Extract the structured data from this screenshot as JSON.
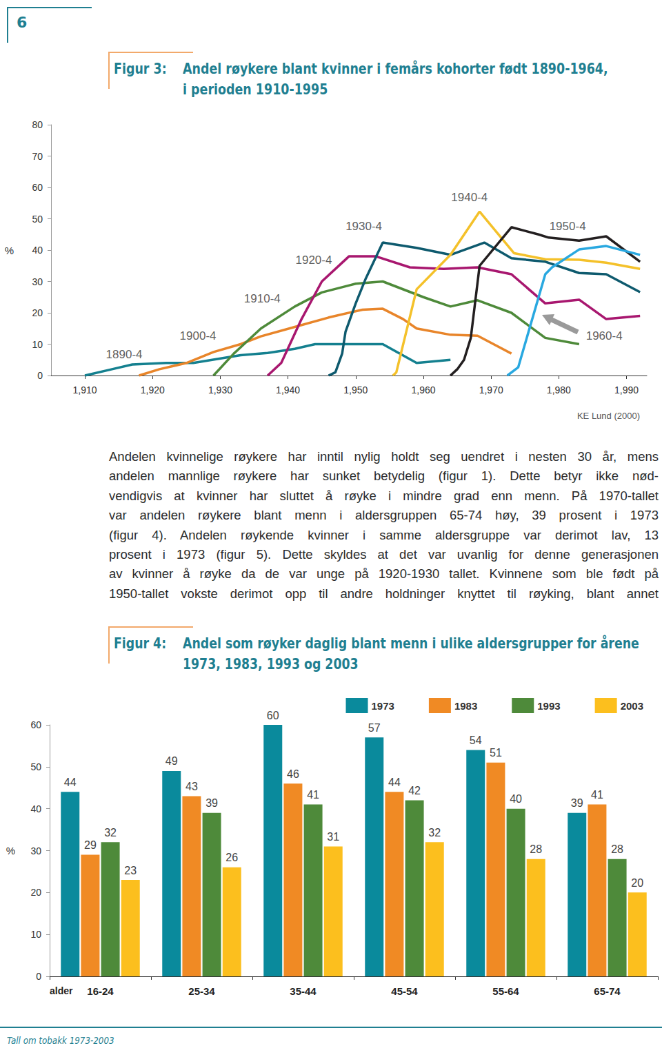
{
  "header": {
    "page_number": "6"
  },
  "chart_data": [
    {
      "type": "line",
      "figure_label": "Figur 3:",
      "title": [
        "Andel røykere blant kvinner i femårs kohorter født 1890-1964,",
        "i perioden 1910-1995"
      ],
      "source": "KE Lund (2000)",
      "y_label": "%",
      "xlim": [
        1905,
        1993
      ],
      "xticks": [
        1910,
        1920,
        1930,
        1940,
        1950,
        1960,
        1970,
        1980,
        1990
      ],
      "ylim": [
        0,
        80
      ],
      "yticks": [
        0,
        10,
        20,
        30,
        40,
        50,
        60,
        70,
        80
      ],
      "grid": false,
      "series": [
        {
          "name": "1890-4",
          "color": "#14808f",
          "x": [
            1910,
            1914,
            1917,
            1922,
            1926,
            1933,
            1937,
            1941,
            1944,
            1954,
            1959,
            1964
          ],
          "values": [
            0,
            2,
            3.5,
            4,
            4,
            6.5,
            7.2,
            8.5,
            10,
            10,
            4,
            5
          ]
        },
        {
          "name": "1900-4",
          "color": "#e8852a",
          "x": [
            1918,
            1921,
            1925,
            1929,
            1933,
            1936,
            1941,
            1946,
            1951,
            1954,
            1957,
            1959,
            1964,
            1968,
            1973
          ],
          "values": [
            0,
            2,
            4,
            7.5,
            10,
            12.5,
            15.5,
            18.5,
            21,
            21.3,
            18,
            15,
            13,
            12.7,
            7
          ]
        },
        {
          "name": "1910-4",
          "color": "#4e8a3a",
          "x": [
            1929,
            1932,
            1936,
            1941,
            1945,
            1950,
            1954,
            1960,
            1964,
            1968,
            1973,
            1978,
            1983
          ],
          "values": [
            0,
            7,
            15,
            22,
            26.5,
            29.3,
            30,
            25,
            22,
            24,
            20,
            12,
            10
          ]
        },
        {
          "name": "1920-4",
          "color": "#a8176f",
          "x": [
            1937,
            1939,
            1942,
            1945,
            1949,
            1953,
            1958,
            1963,
            1968,
            1973,
            1978,
            1983,
            1987,
            1992
          ],
          "values": [
            0,
            4,
            18,
            30,
            38,
            38,
            34.5,
            34,
            34.5,
            32.3,
            23,
            24.2,
            18,
            19
          ]
        },
        {
          "name": "1930-4",
          "color": "#0e5a6e",
          "x": [
            1946,
            1947,
            1948,
            1948.5,
            1950,
            1951.5,
            1954,
            1959,
            1964,
            1969,
            1973,
            1978,
            1983,
            1987,
            1992
          ],
          "values": [
            0,
            1,
            7,
            14,
            23,
            31,
            42.4,
            40.7,
            38.5,
            42.4,
            37.4,
            36.3,
            32.7,
            32.3,
            26.6
          ]
        },
        {
          "name": "1940-4",
          "color": "#f4c12a",
          "x": [
            1955.5,
            1956,
            1959,
            1964,
            1968.3,
            1973.4,
            1978,
            1983,
            1987,
            1992
          ],
          "values": [
            0,
            1,
            27.5,
            38.5,
            52.3,
            39,
            37.1,
            36.9,
            36,
            34
          ]
        },
        {
          "name": "1950-4",
          "color": "#231f20",
          "x": [
            1964,
            1965,
            1966,
            1967,
            1968.3,
            1973,
            1977,
            1978.5,
            1983,
            1987,
            1992
          ],
          "values": [
            0,
            2,
            5,
            12,
            35,
            47.3,
            45,
            44,
            43,
            44.4,
            36.3
          ]
        },
        {
          "name": "1960-4",
          "color": "#29a8e0",
          "x": [
            1972.4,
            1974,
            1978,
            1979,
            1983,
            1987,
            1992
          ],
          "values": [
            0,
            2.6,
            32.3,
            34.5,
            40.2,
            41.3,
            38.5
          ]
        }
      ],
      "annotations": [
        {
          "text": "1890-4",
          "x": 1915.8,
          "y": 6.6
        },
        {
          "text": "1900-4",
          "x": 1926.7,
          "y": 12.7
        },
        {
          "text": "1910-4",
          "x": 1936.2,
          "y": 24.6
        },
        {
          "text": "1920-4",
          "x": 1943.8,
          "y": 36.9
        },
        {
          "text": "1930-4",
          "x": 1951.2,
          "y": 47.5
        },
        {
          "text": "1940-4",
          "x": 1966.8,
          "y": 56.9
        },
        {
          "text": "1950-4",
          "x": 1981.3,
          "y": 47.5
        },
        {
          "text": "1960-4",
          "x": 1986.7,
          "y": 12.7
        }
      ]
    },
    {
      "type": "bar",
      "figure_label": "Figur 4:",
      "title": [
        "Andel som røyker daglig blant menn i ulike aldersgrupper for årene",
        "1973, 1983, 1993 og 2003"
      ],
      "x_label": "alder",
      "y_label": "%",
      "categories": [
        "16-24",
        "25-34",
        "35-44",
        "45-54",
        "55-64",
        "65-74"
      ],
      "ylim": [
        0,
        60
      ],
      "yticks": [
        0,
        10,
        20,
        30,
        40,
        50,
        60
      ],
      "grid": false,
      "legend": "top-right",
      "data_labels": true,
      "series": [
        {
          "name": "1973",
          "color": "#0a8a9c",
          "values": [
            44,
            49,
            60,
            57,
            54,
            39
          ]
        },
        {
          "name": "1983",
          "color": "#f08a24",
          "values": [
            29,
            43,
            46,
            44,
            51,
            41
          ]
        },
        {
          "name": "1993",
          "color": "#4e8a3a",
          "values": [
            32,
            39,
            41,
            42,
            40,
            28
          ]
        },
        {
          "name": "2003",
          "color": "#fcbf1e",
          "values": [
            23,
            26,
            31,
            32,
            28,
            20
          ]
        }
      ]
    }
  ],
  "body_text": [
    "Andelen kvinnelige røykere har inntil nylig holdt seg uendret i nesten 30 år, mens",
    "andelen mannlige røykere har sunket betydelig (figur 1). Dette betyr ikke nød-",
    "vendigvis at kvinner har sluttet å røyke i mindre grad enn menn. På 1970-tallet",
    "var andelen røykere blant menn i aldersgruppen 65-74 høy, 39 prosent i 1973",
    "(figur 4). Andelen røykende kvinner i samme aldersgruppe var derimot lav, 13",
    "prosent i 1973 (figur 5). Dette skyldes at det var uvanlig for denne generasjonen",
    "av kvinner å røyke da de var unge på 1920-1930 tallet. Kvinnene som ble født på",
    "1950-tallet vokste derimot opp til andre holdninger knyttet til røyking, blant annet"
  ],
  "footer": "Tall om tobakk 1973-2003"
}
